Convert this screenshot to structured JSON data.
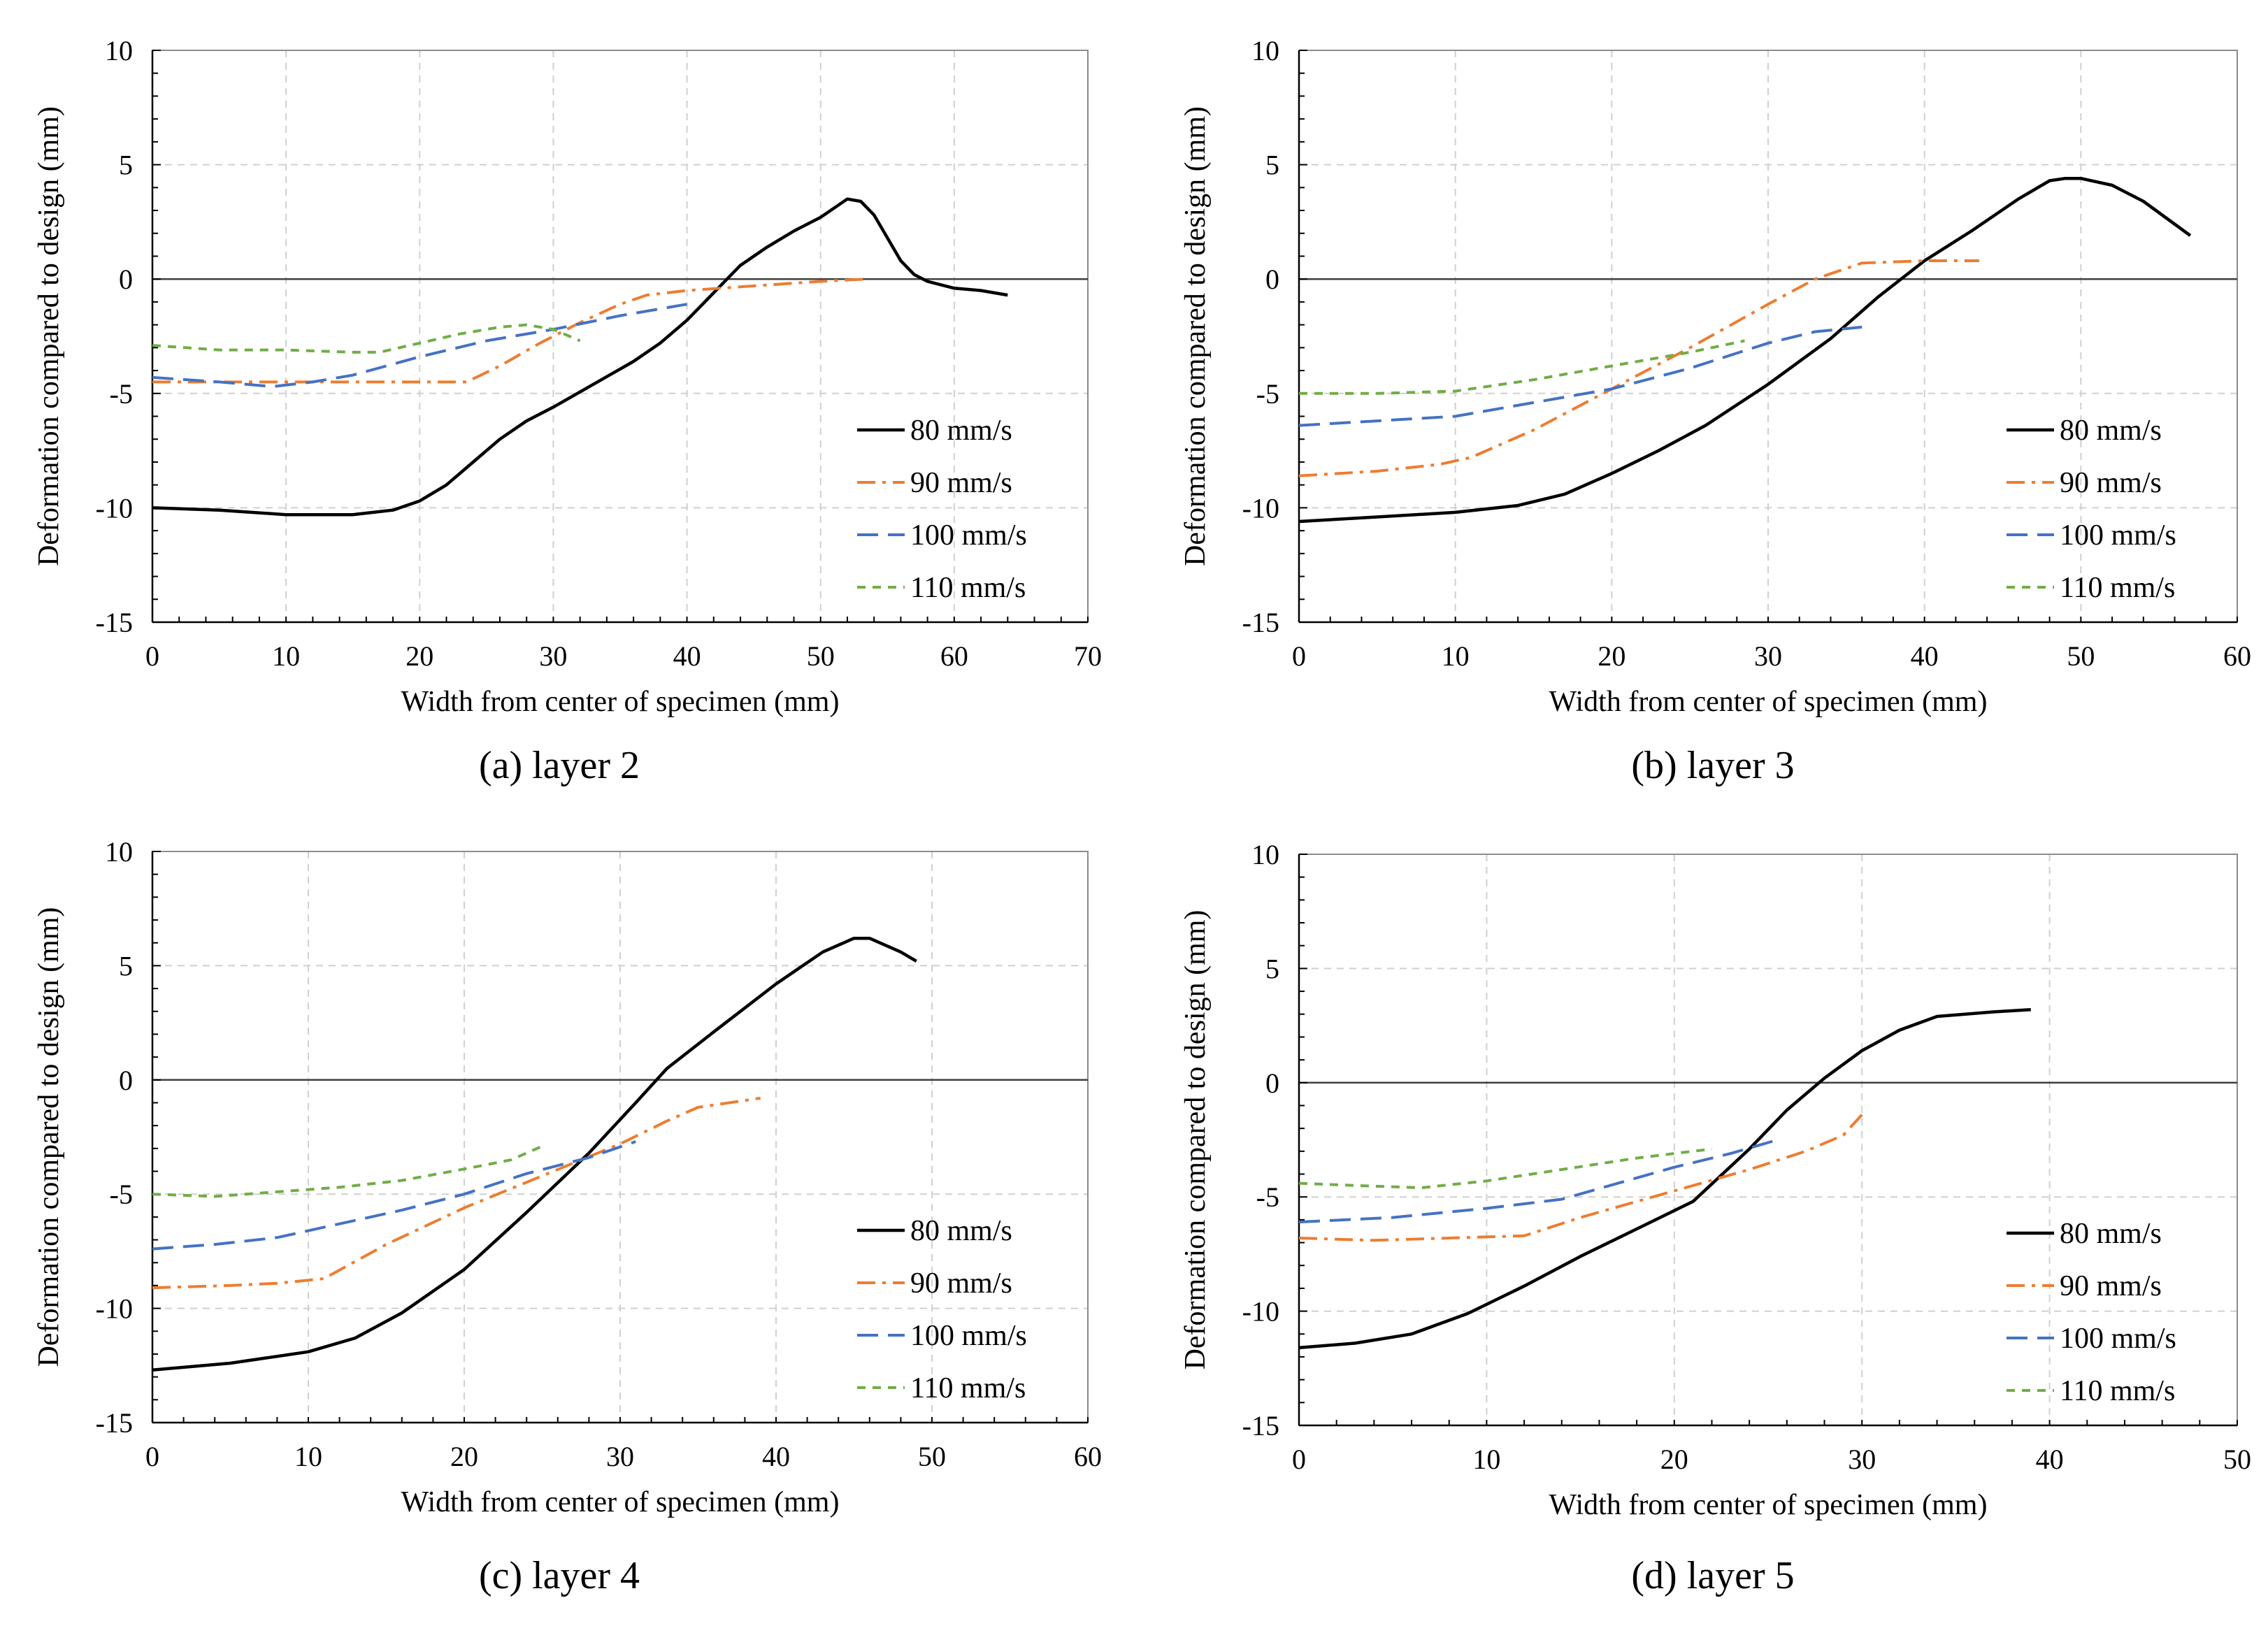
{
  "colors": {
    "80": "#000000",
    "90": "#ED7D31",
    "100": "#4472C4",
    "110": "#70AD47"
  },
  "chart_data": [
    {
      "type": "line",
      "caption": "(a) layer 2",
      "xlabel": "Width from center of specimen (mm)",
      "ylabel": "Deformation compared to design (mm)",
      "xlim": [
        0,
        70
      ],
      "xticks": [
        0,
        10,
        20,
        30,
        40,
        50,
        60,
        70
      ],
      "ylim": [
        -15,
        10
      ],
      "yticks": [
        -15,
        -10,
        -5,
        0,
        5,
        10
      ],
      "grid": true,
      "legend_position": "bottom-right",
      "series": [
        {
          "name": "80 mm/s",
          "style": "solid",
          "points": [
            [
              0,
              -10
            ],
            [
              5,
              -10.1
            ],
            [
              10,
              -10.3
            ],
            [
              15,
              -10.3
            ],
            [
              18,
              -10.1
            ],
            [
              20,
              -9.7
            ],
            [
              22,
              -9
            ],
            [
              24,
              -8
            ],
            [
              26,
              -7
            ],
            [
              28,
              -6.2
            ],
            [
              30,
              -5.6
            ],
            [
              33,
              -4.6
            ],
            [
              36,
              -3.6
            ],
            [
              38,
              -2.8
            ],
            [
              40,
              -1.8
            ],
            [
              42,
              -0.6
            ],
            [
              44,
              0.6
            ],
            [
              46,
              1.4
            ],
            [
              48,
              2.1
            ],
            [
              50,
              2.7
            ],
            [
              51,
              3.1
            ],
            [
              52,
              3.5
            ],
            [
              53,
              3.4
            ],
            [
              54,
              2.8
            ],
            [
              55,
              1.8
            ],
            [
              56,
              0.8
            ],
            [
              57,
              0.2
            ],
            [
              58,
              -0.1
            ],
            [
              60,
              -0.4
            ],
            [
              62,
              -0.5
            ],
            [
              64,
              -0.7
            ]
          ]
        },
        {
          "name": "90 mm/s",
          "style": "dashdot",
          "points": [
            [
              0,
              -4.5
            ],
            [
              5,
              -4.5
            ],
            [
              10,
              -4.5
            ],
            [
              15,
              -4.5
            ],
            [
              20,
              -4.5
            ],
            [
              23.5,
              -4.5
            ],
            [
              26,
              -3.8
            ],
            [
              29,
              -2.8
            ],
            [
              32,
              -1.9
            ],
            [
              35,
              -1.1
            ],
            [
              37,
              -0.7
            ],
            [
              40,
              -0.5
            ],
            [
              45,
              -0.3
            ],
            [
              50,
              -0.1
            ],
            [
              53.5,
              0
            ]
          ]
        },
        {
          "name": "100 mm/s",
          "style": "dashed",
          "points": [
            [
              0,
              -4.3
            ],
            [
              5,
              -4.5
            ],
            [
              9,
              -4.7
            ],
            [
              12,
              -4.5
            ],
            [
              15,
              -4.2
            ],
            [
              20,
              -3.4
            ],
            [
              25,
              -2.7
            ],
            [
              30,
              -2.2
            ],
            [
              35,
              -1.6
            ],
            [
              40,
              -1.1
            ]
          ]
        },
        {
          "name": "110 mm/s",
          "style": "dotted",
          "points": [
            [
              0,
              -2.9
            ],
            [
              5,
              -3.1
            ],
            [
              10,
              -3.1
            ],
            [
              15,
              -3.2
            ],
            [
              17,
              -3.2
            ],
            [
              20,
              -2.8
            ],
            [
              23,
              -2.4
            ],
            [
              26,
              -2.1
            ],
            [
              28,
              -2
            ],
            [
              30,
              -2.2
            ],
            [
              32,
              -2.7
            ]
          ]
        }
      ]
    },
    {
      "type": "line",
      "caption": "(b) layer 3",
      "xlabel": "Width from center of specimen (mm)",
      "ylabel": "Deformation compared to design (mm)",
      "xlim": [
        0,
        60
      ],
      "xticks": [
        0,
        10,
        20,
        30,
        40,
        50,
        60
      ],
      "ylim": [
        -15,
        10
      ],
      "yticks": [
        -15,
        -10,
        -5,
        0,
        5,
        10
      ],
      "grid": true,
      "legend_position": "bottom-right",
      "series": [
        {
          "name": "80 mm/s",
          "style": "solid",
          "points": [
            [
              0,
              -10.6
            ],
            [
              5,
              -10.4
            ],
            [
              10,
              -10.2
            ],
            [
              14,
              -9.9
            ],
            [
              17,
              -9.4
            ],
            [
              20,
              -8.5
            ],
            [
              23,
              -7.5
            ],
            [
              26,
              -6.4
            ],
            [
              30,
              -4.6
            ],
            [
              34,
              -2.6
            ],
            [
              37,
              -0.8
            ],
            [
              40,
              0.8
            ],
            [
              43,
              2.1
            ],
            [
              46,
              3.5
            ],
            [
              48,
              4.3
            ],
            [
              49,
              4.4
            ],
            [
              50,
              4.4
            ],
            [
              52,
              4.1
            ],
            [
              54,
              3.4
            ],
            [
              57,
              1.9
            ]
          ]
        },
        {
          "name": "90 mm/s",
          "style": "dashdot",
          "points": [
            [
              0,
              -8.6
            ],
            [
              5,
              -8.4
            ],
            [
              9,
              -8.1
            ],
            [
              11,
              -7.8
            ],
            [
              15,
              -6.6
            ],
            [
              20,
              -4.8
            ],
            [
              25,
              -3
            ],
            [
              30,
              -1.1
            ],
            [
              33,
              0
            ],
            [
              36,
              0.7
            ],
            [
              40,
              0.8
            ],
            [
              43.5,
              0.8
            ]
          ]
        },
        {
          "name": "100 mm/s",
          "style": "dashed",
          "points": [
            [
              0,
              -6.4
            ],
            [
              5,
              -6.2
            ],
            [
              10,
              -6
            ],
            [
              15,
              -5.4
            ],
            [
              20,
              -4.8
            ],
            [
              25,
              -3.9
            ],
            [
              30,
              -2.8
            ],
            [
              33,
              -2.3
            ],
            [
              36,
              -2.1
            ]
          ]
        },
        {
          "name": "110 mm/s",
          "style": "dotted",
          "points": [
            [
              0,
              -5
            ],
            [
              5,
              -5
            ],
            [
              10,
              -4.9
            ],
            [
              15,
              -4.4
            ],
            [
              20,
              -3.8
            ],
            [
              25,
              -3.2
            ],
            [
              28.5,
              -2.7
            ]
          ]
        }
      ]
    },
    {
      "type": "line",
      "caption": "(c) layer 4",
      "xlabel": "Width from center of specimen (mm)",
      "ylabel": "Deformation compared to design (mm)",
      "xlim": [
        0,
        60
      ],
      "xticks": [
        0,
        10,
        20,
        30,
        40,
        50,
        60
      ],
      "ylim": [
        -15,
        10
      ],
      "yticks": [
        -15,
        -10,
        -5,
        0,
        5,
        10
      ],
      "grid": true,
      "legend_position": "bottom-right",
      "series": [
        {
          "name": "80 mm/s",
          "style": "solid",
          "points": [
            [
              0,
              -12.7
            ],
            [
              5,
              -12.4
            ],
            [
              10,
              -11.9
            ],
            [
              13,
              -11.3
            ],
            [
              16,
              -10.2
            ],
            [
              20,
              -8.3
            ],
            [
              24,
              -5.8
            ],
            [
              28,
              -3.2
            ],
            [
              31,
              -1
            ],
            [
              33,
              0.5
            ],
            [
              36,
              2.1
            ],
            [
              40,
              4.2
            ],
            [
              43,
              5.6
            ],
            [
              45,
              6.2
            ],
            [
              46,
              6.2
            ],
            [
              48,
              5.6
            ],
            [
              49,
              5.2
            ]
          ]
        },
        {
          "name": "90 mm/s",
          "style": "dashdot",
          "points": [
            [
              0,
              -9.1
            ],
            [
              5,
              -9
            ],
            [
              8,
              -8.9
            ],
            [
              11,
              -8.7
            ],
            [
              15,
              -7.2
            ],
            [
              20,
              -5.6
            ],
            [
              25,
              -4.2
            ],
            [
              30,
              -2.8
            ],
            [
              33,
              -1.8
            ],
            [
              35,
              -1.2
            ],
            [
              39,
              -0.8
            ]
          ]
        },
        {
          "name": "100 mm/s",
          "style": "dashed",
          "points": [
            [
              0,
              -7.4
            ],
            [
              4,
              -7.2
            ],
            [
              8,
              -6.9
            ],
            [
              12,
              -6.3
            ],
            [
              16,
              -5.7
            ],
            [
              20,
              -5
            ],
            [
              24,
              -4.1
            ],
            [
              28,
              -3.4
            ],
            [
              31,
              -2.7
            ]
          ]
        },
        {
          "name": "110 mm/s",
          "style": "dotted",
          "points": [
            [
              0,
              -5
            ],
            [
              4,
              -5.1
            ],
            [
              8,
              -4.9
            ],
            [
              12,
              -4.7
            ],
            [
              16,
              -4.4
            ],
            [
              20,
              -3.9
            ],
            [
              23,
              -3.5
            ],
            [
              25,
              -2.9
            ]
          ]
        }
      ]
    },
    {
      "type": "line",
      "caption": "(d) layer 5",
      "xlabel": "Width from center of specimen (mm)",
      "ylabel": "Deformation compared to design (mm)",
      "xlim": [
        0,
        50
      ],
      "xticks": [
        0,
        10,
        20,
        30,
        40,
        50
      ],
      "ylim": [
        -15,
        10
      ],
      "yticks": [
        -15,
        -10,
        -5,
        0,
        5,
        10
      ],
      "grid": true,
      "legend_position": "bottom-right",
      "series": [
        {
          "name": "80 mm/s",
          "style": "solid",
          "points": [
            [
              0,
              -11.6
            ],
            [
              3,
              -11.4
            ],
            [
              6,
              -11
            ],
            [
              9,
              -10.1
            ],
            [
              12,
              -8.9
            ],
            [
              15,
              -7.6
            ],
            [
              18,
              -6.4
            ],
            [
              21,
              -5.2
            ],
            [
              24,
              -2.9
            ],
            [
              26,
              -1.2
            ],
            [
              28,
              0.2
            ],
            [
              30,
              1.4
            ],
            [
              32,
              2.3
            ],
            [
              34,
              2.9
            ],
            [
              37,
              3.1
            ],
            [
              39,
              3.2
            ]
          ]
        },
        {
          "name": "90 mm/s",
          "style": "dashdot",
          "points": [
            [
              0,
              -6.8
            ],
            [
              4,
              -6.9
            ],
            [
              8,
              -6.8
            ],
            [
              12,
              -6.7
            ],
            [
              15,
              -5.9
            ],
            [
              18,
              -5.2
            ],
            [
              21,
              -4.5
            ],
            [
              24,
              -3.8
            ],
            [
              27,
              -3
            ],
            [
              29,
              -2.3
            ],
            [
              30,
              -1.4
            ]
          ]
        },
        {
          "name": "100 mm/s",
          "style": "dashed",
          "points": [
            [
              0,
              -6.1
            ],
            [
              5,
              -5.9
            ],
            [
              10,
              -5.5
            ],
            [
              14,
              -5.1
            ],
            [
              17,
              -4.4
            ],
            [
              20,
              -3.7
            ],
            [
              23,
              -3.1
            ],
            [
              25.5,
              -2.5
            ]
          ]
        },
        {
          "name": "110 mm/s",
          "style": "dotted",
          "points": [
            [
              0,
              -4.4
            ],
            [
              3,
              -4.5
            ],
            [
              6.5,
              -4.6
            ],
            [
              10,
              -4.3
            ],
            [
              14,
              -3.8
            ],
            [
              18,
              -3.3
            ],
            [
              21,
              -3
            ],
            [
              22,
              -2.9
            ]
          ]
        }
      ]
    }
  ]
}
